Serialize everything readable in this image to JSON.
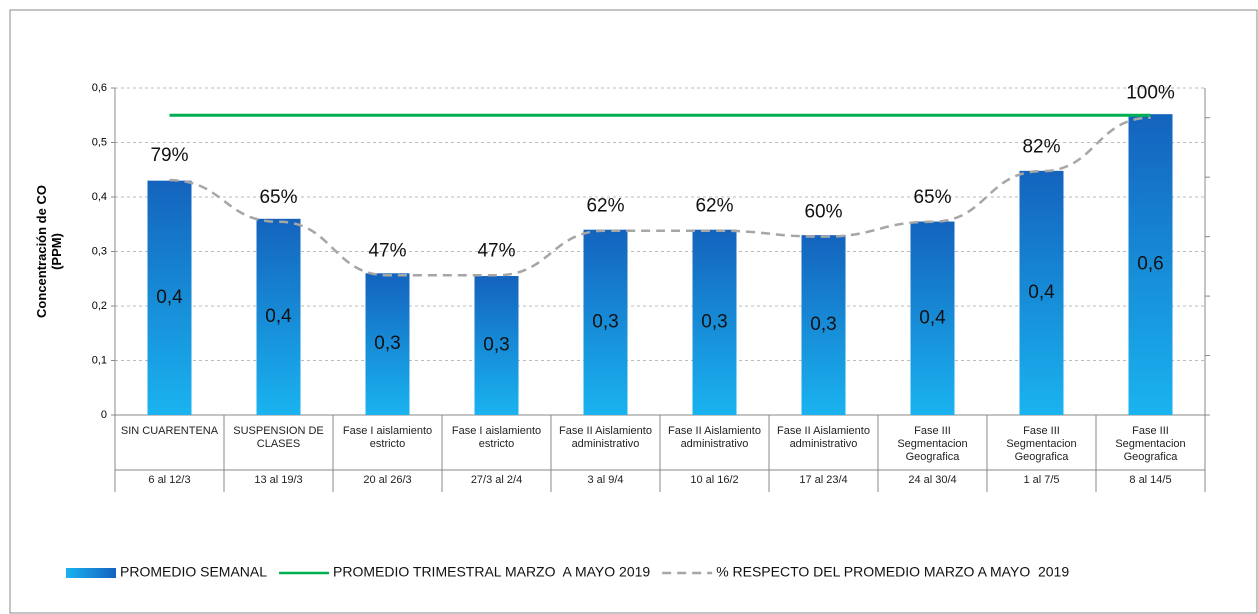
{
  "chart_data": {
    "type": "bar",
    "y_label": "Concentración de CO (PPM)",
    "categories": [
      "SIN CUARENTENA",
      "SUSPENSION DE CLASES",
      "Fase I aislamiento estricto",
      "Fase I aislamiento estricto",
      "Fase II Aislamiento administrativo",
      "Fase II Aislamiento administrativo",
      "Fase II Aislamiento administrativo",
      "Fase III Segmentacion Geografica",
      "Fase III Segmentacion Geografica",
      "Fase III Segmentacion Geografica"
    ],
    "periods": [
      "6 al 12/3",
      "13 al 19/3",
      "20 al 26/3",
      "27/3 al 2/4",
      "3 al 9/4",
      "10 al 16/2",
      "17 al 23/4",
      "24 al 30/4",
      "1 al 7/5",
      "8 al 14/5"
    ],
    "series": [
      {
        "name": "PROMEDIO SEMANAL",
        "type": "bar",
        "color": "#1a7fd0",
        "values": [
          0.43,
          0.36,
          0.26,
          0.255,
          0.34,
          0.34,
          0.33,
          0.355,
          0.448,
          0.552
        ],
        "value_labels": [
          "0,4",
          "0,4",
          "0,3",
          "0,3",
          "0,3",
          "0,3",
          "0,3",
          "0,4",
          "0,4",
          "0,6"
        ]
      },
      {
        "name": "PROMEDIO TRIMESTRAL MARZO  A MAYO 2019",
        "type": "line",
        "color": "#00b050",
        "values": [
          0.55,
          0.55,
          0.55,
          0.55,
          0.55,
          0.55,
          0.55,
          0.55,
          0.55,
          0.55
        ]
      },
      {
        "name": "% RESPECTO DEL PROMEDIO MARZO A MAYO  2019",
        "type": "dashed-line",
        "axis": "y2",
        "color": "#a6a6a6",
        "values": [
          79,
          65,
          47,
          47,
          62,
          62,
          60,
          65,
          82,
          100
        ],
        "value_labels": [
          "79%",
          "65%",
          "47%",
          "47%",
          "62%",
          "62%",
          "60%",
          "65%",
          "82%",
          "100%"
        ]
      }
    ],
    "ylim": [
      0,
      0.6
    ],
    "yticks": [
      0,
      {
        "value": 0.1,
        "label": "0,1"
      },
      {
        "value": 0.2,
        "label": "0,2"
      },
      {
        "value": 0.3,
        "label": "0,3"
      },
      {
        "value": 0.4,
        "label": "0,4"
      },
      {
        "value": 0.5,
        "label": "0,5"
      },
      {
        "value": 0.6,
        "label": "0,6"
      }
    ],
    "y2lim": [
      0,
      110
    ],
    "y2ticks": [
      0,
      20,
      40,
      60,
      80,
      100
    ],
    "grid": true,
    "legend": "bottom"
  }
}
